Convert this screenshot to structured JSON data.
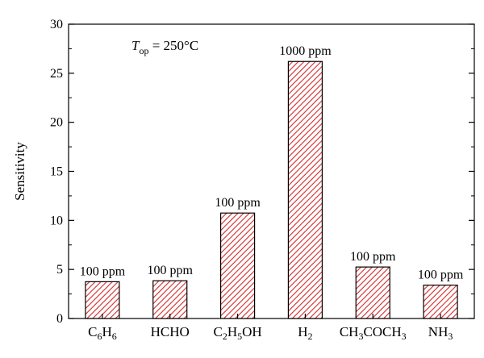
{
  "chart_data": {
    "type": "bar",
    "categories": [
      {
        "parts": [
          [
            "C",
            ""
          ],
          [
            "6",
            "sub"
          ],
          [
            "H",
            ""
          ],
          [
            "6",
            "sub"
          ]
        ]
      },
      {
        "parts": [
          [
            "HCHO",
            ""
          ]
        ]
      },
      {
        "parts": [
          [
            "C",
            ""
          ],
          [
            "2",
            "sub"
          ],
          [
            "H",
            ""
          ],
          [
            "5",
            "sub"
          ],
          [
            "OH",
            ""
          ]
        ]
      },
      {
        "parts": [
          [
            "H",
            ""
          ],
          [
            "2",
            "sub"
          ]
        ]
      },
      {
        "parts": [
          [
            "CH",
            ""
          ],
          [
            "3",
            "sub"
          ],
          [
            "COCH",
            ""
          ],
          [
            "3",
            "sub"
          ]
        ]
      },
      {
        "parts": [
          [
            "NH",
            ""
          ],
          [
            "3",
            "sub"
          ]
        ]
      }
    ],
    "values": [
      3.75,
      3.85,
      10.75,
      26.2,
      5.25,
      3.4
    ],
    "data_labels": [
      "100 ppm",
      "100 ppm",
      "100 ppm",
      "1000 ppm",
      "100 ppm",
      "100 ppm"
    ],
    "ylabel": "Sensitivity",
    "ylim": [
      0,
      30
    ],
    "yticks": [
      0,
      5,
      10,
      15,
      20,
      25,
      30
    ],
    "annotation": {
      "symbol": "T",
      "subscript": "op",
      "text": " = 250°C"
    },
    "bar_color": "#d22a2a",
    "hatch": "diagonal",
    "grid": false,
    "legend": "none"
  }
}
